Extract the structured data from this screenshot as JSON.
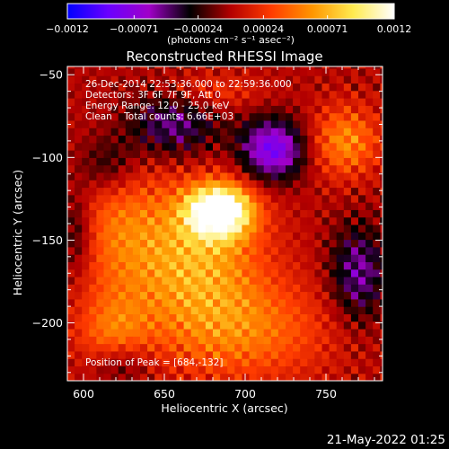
{
  "chart_data": {
    "type": "heatmap",
    "title": "Reconstructed RHESSI Image",
    "xlabel": "Heliocentric X (arcsec)",
    "ylabel": "Heliocentric Y (arcsec)",
    "xlim": [
      590,
      785
    ],
    "ylim": [
      -235,
      -45
    ],
    "x_ticks": [
      600,
      650,
      700,
      750
    ],
    "x_tick_labels": [
      "600",
      "650",
      "700",
      "750"
    ],
    "y_ticks": [
      -50,
      -100,
      -150,
      -200
    ],
    "y_tick_labels": [
      "−50",
      "−100",
      "−150",
      "−200"
    ],
    "colorbar": {
      "range": [
        -0.0012,
        0.0012
      ],
      "tick_values": [
        -0.0012,
        -0.00071,
        -0.00024,
        0.00024,
        0.00071,
        0.0012
      ],
      "tick_labels": [
        "−0.0012",
        "−0.00071",
        "−0.00024",
        "0.00024",
        "0.00071",
        "0.0012"
      ],
      "units_label": "(photons cm⁻² s⁻¹ asec⁻²)",
      "stops": [
        "#0000ff",
        "#6a00ff",
        "#a000c8",
        "#000000",
        "#b40000",
        "#ff3c00",
        "#ff9600",
        "#ffeb50",
        "#ffffff"
      ]
    },
    "annotations": {
      "time_range": "26-Dec-2014 22:53:36.000 to 22:59:36.000",
      "detectors": "Detectors: 3F 6F 7F 9F, Att 0",
      "energy": "Energy Range: 12.0 - 25.0 keV",
      "clean": "Clean    Total counts: 6.66E+03",
      "peak": "Position of Peak = [684,-132]"
    },
    "peak": {
      "x": 684,
      "y": -132
    },
    "blobs": [
      {
        "x": 684,
        "y": -132,
        "sx": 14,
        "sy": 11,
        "amp": 0.00135
      },
      {
        "x": 668,
        "y": -160,
        "sx": 30,
        "sy": 30,
        "amp": 0.00065
      },
      {
        "x": 620,
        "y": -140,
        "sx": 20,
        "sy": 30,
        "amp": 0.00035
      },
      {
        "x": 762,
        "y": -90,
        "sx": 15,
        "sy": 15,
        "amp": 0.00055
      },
      {
        "x": 700,
        "y": -205,
        "sx": 38,
        "sy": 22,
        "amp": 0.00045
      },
      {
        "x": 618,
        "y": -210,
        "sx": 16,
        "sy": 20,
        "amp": 0.00045
      },
      {
        "x": 680,
        "y": -60,
        "sx": 22,
        "sy": 8,
        "amp": 0.00025
      },
      {
        "x": 717,
        "y": -95,
        "sx": 14,
        "sy": 13,
        "amp": -0.00085
      },
      {
        "x": 655,
        "y": -80,
        "sx": 20,
        "sy": 14,
        "amp": -0.0005
      },
      {
        "x": 770,
        "y": -170,
        "sx": 12,
        "sy": 20,
        "amp": -0.00055
      },
      {
        "x": 622,
        "y": -225,
        "sx": 14,
        "sy": 10,
        "amp": -0.00045
      },
      {
        "x": 615,
        "y": -105,
        "sx": 13,
        "sy": 13,
        "amp": -0.00035
      },
      {
        "x": 596,
        "y": -145,
        "sx": 7,
        "sy": 18,
        "amp": -0.00035
      }
    ]
  },
  "timestamp": "21-May-2022 01:25"
}
